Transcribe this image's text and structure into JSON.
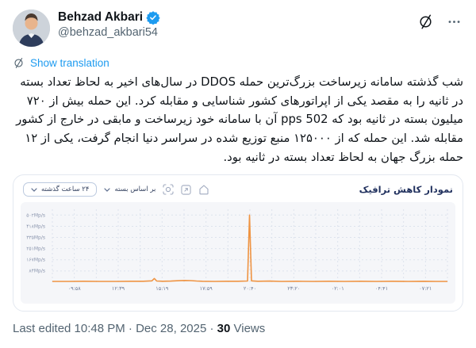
{
  "header": {
    "display_name": "Behzad Akbari",
    "handle": "@behzad_akbari54",
    "verified": true
  },
  "translation": {
    "label": "Show translation"
  },
  "tweet": {
    "body": "شب گذشته سامانه زیرساخت بزرگ‌ترین حمله DDOS در سال‌های اخیر به لحاظ تعداد بسته در ثانیه را به مقصد یکی از اپراتورهای کشور شناسایی و مقابله کرد. این حمله بیش از ۷۲۰ میلیون بسته در ثانیه بود که pps 502 آن با سامانه خود زیرساخت و مابقی در خارج از کشور مقابله شد. این حمله که از ۱۲۵۰۰۰ منبع توزیع شده در سراسر دنیا انجام گرفت، یکی از ۱۲ حمله بزرگ جهان به لحاظ تعداد بسته در ثانیه بود."
  },
  "chart_card": {
    "title": "نمودار کاهش ترافیک",
    "range_select": "۲۴ ساعت گذشته",
    "metric_select": "بر اساس بسته",
    "icons": [
      "focus-icon",
      "expand-icon",
      "home-icon"
    ]
  },
  "footer": {
    "prefix": "Last edited 10:48 PM · Dec 28, 2025 · ",
    "views_count": "30",
    "views_label": " Views"
  },
  "colors": {
    "accent_blue": "#1d9bf0",
    "secondary_text": "#536471",
    "line_orange": "#ef9443",
    "grid": "#dde3ed",
    "panel_bg": "#f5f6f9",
    "chart_title": "#22325f"
  },
  "chart_data": {
    "type": "line",
    "title": "نمودار کاهش ترافیک",
    "unit": "Mp/s",
    "legend": "off",
    "grid": "dashed",
    "line_color": "#ef9443",
    "x_ticks": [
      "۰۹:۵۸",
      "۱۲:۳۹",
      "۱۵:۱۹",
      "۱۷:۵۹",
      "۲۰:۴۰",
      "۲۳:۲۰",
      "۰۲:۰۱",
      "۰۴:۴۱",
      "۰۷:۲۱"
    ],
    "y_ticks": [
      {
        "label": "۵۰۲Mp/s",
        "value": 502
      },
      {
        "label": "۴۱۸Mp/s",
        "value": 418
      },
      {
        "label": "۳۳۵Mp/s",
        "value": 335
      },
      {
        "label": "۲۵۱Mp/s",
        "value": 251
      },
      {
        "label": "۱۶۷Mp/s",
        "value": 167
      },
      {
        "label": "۸۴Mp/s",
        "value": 84
      }
    ],
    "ylim": [
      0,
      545
    ],
    "peak_annotation": "Main DDOS spike ≈ 502 Mp/s at ۲۰:۴۰",
    "points": [
      [
        0,
        6
      ],
      [
        4,
        6
      ],
      [
        8,
        7
      ],
      [
        12,
        6
      ],
      [
        16,
        6
      ],
      [
        20,
        7
      ],
      [
        23,
        7
      ],
      [
        25.2,
        10
      ],
      [
        25.8,
        28
      ],
      [
        26.4,
        9
      ],
      [
        28,
        7
      ],
      [
        30,
        8
      ],
      [
        32,
        11
      ],
      [
        33.5,
        13
      ],
      [
        35,
        12
      ],
      [
        36.5,
        9
      ],
      [
        38,
        7
      ],
      [
        41,
        6
      ],
      [
        44,
        7
      ],
      [
        47,
        7
      ],
      [
        49.4,
        9
      ],
      [
        49.9,
        502
      ],
      [
        50.4,
        10
      ],
      [
        52,
        7
      ],
      [
        55,
        8
      ],
      [
        58,
        6
      ],
      [
        62,
        7
      ],
      [
        66,
        6
      ],
      [
        70,
        7
      ],
      [
        74,
        6
      ],
      [
        78,
        7
      ],
      [
        82,
        6
      ],
      [
        86,
        7
      ],
      [
        90,
        6
      ],
      [
        94,
        7
      ],
      [
        97,
        6
      ],
      [
        100,
        6
      ]
    ]
  }
}
